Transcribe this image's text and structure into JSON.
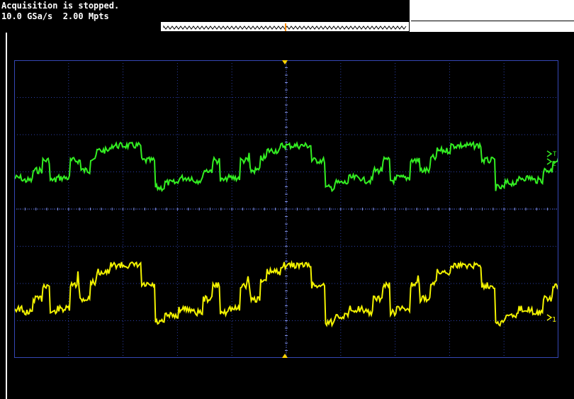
{
  "status": {
    "acquisition_text": "Acquisition is stopped.",
    "sample_rate": "10.0 GSa/s",
    "memory_depth": "2.00 Mpts"
  },
  "colors": {
    "channel1": "#f2f200",
    "channel2": "#33ee22",
    "grid": "#2c3fa8",
    "trigger_marker": "#ffd400"
  },
  "channels": [
    {
      "id": "channel-2",
      "marker_label": "2",
      "marker_icon": "channel-2-marker-icon",
      "trigger_label": "T"
    },
    {
      "id": "channel-1",
      "marker_label": "1",
      "marker_icon": "channel-1-marker-icon"
    }
  ],
  "icons": {
    "trigger_position": "trigger-position-icon",
    "memory_overview": "memory-overview-icon"
  }
}
